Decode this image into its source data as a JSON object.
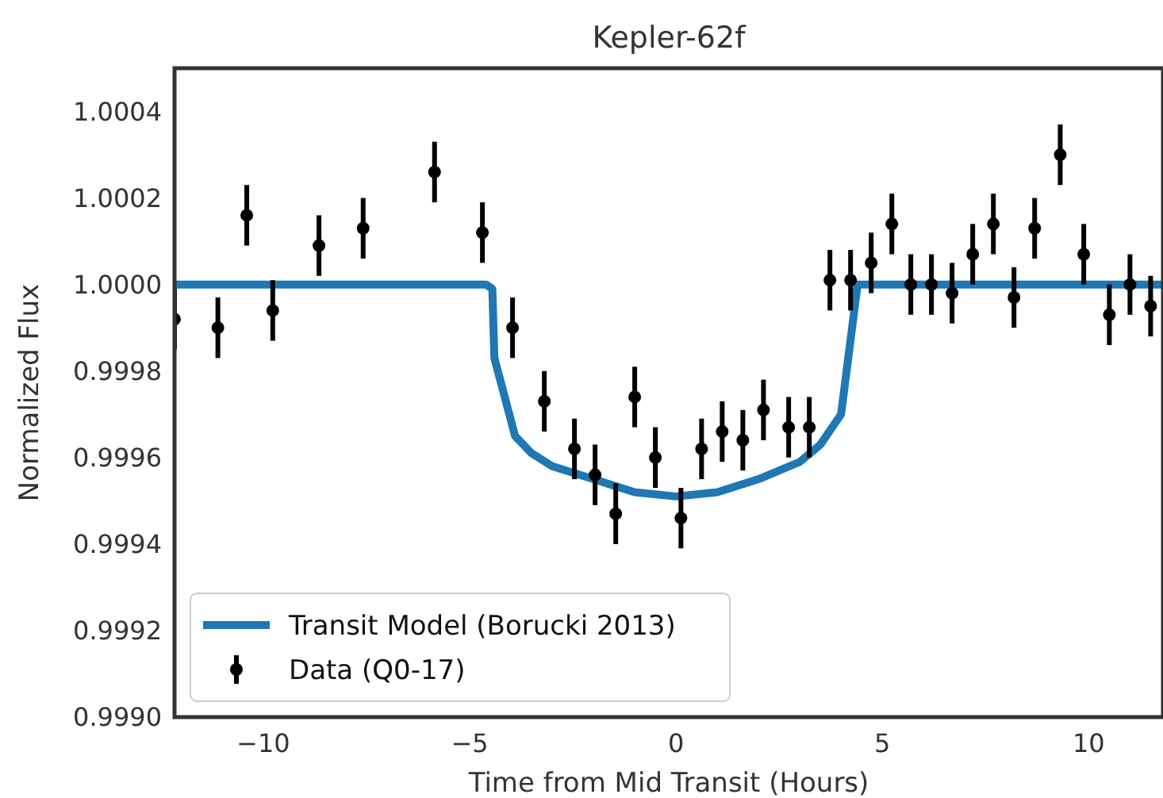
{
  "chart_data": {
    "type": "scatter",
    "title": "Kepler-62f",
    "xlabel": "Time from Mid Transit (Hours)",
    "ylabel": "Normalized Flux",
    "xlim": [
      -12.15,
      11.8
    ],
    "xticks": [
      {
        "value": -10,
        "label": "−10"
      },
      {
        "value": -5,
        "label": "−5"
      },
      0,
      5,
      10
    ],
    "ylim": [
      0.999,
      1.0005
    ],
    "yticks": [
      {
        "value": 0.999,
        "label": "0.9990"
      },
      {
        "value": 0.9992,
        "label": "0.9992"
      },
      {
        "value": 0.9994,
        "label": "0.9994"
      },
      {
        "value": 0.9996,
        "label": "0.9996"
      },
      {
        "value": 0.9998,
        "label": "0.9998"
      },
      {
        "value": 1,
        "label": "1.0000"
      },
      {
        "value": 1.0002,
        "label": "1.0002"
      },
      {
        "value": 1.0004,
        "label": "1.0004"
      }
    ],
    "grid": false,
    "legend": "bottom left",
    "line_style": "solid",
    "series": [
      {
        "name": "Transit Model (Borucki 2013)",
        "type": "line",
        "color": "#1f77b4",
        "x": [
          -12.15,
          -4.6,
          -4.45,
          -4.4,
          -3.9,
          -3.5,
          -3,
          -2,
          -1,
          0,
          1,
          2,
          3,
          3.5,
          4,
          4.4,
          11.8
        ],
        "values": [
          1,
          1,
          0.99999,
          0.99983,
          0.99965,
          0.99961,
          0.99958,
          0.99955,
          0.99952,
          0.99951,
          0.99952,
          0.99955,
          0.99959,
          0.99963,
          0.9997,
          1,
          1
        ]
      },
      {
        "name": "Data (Q0-17)",
        "marker": "circle",
        "color": "#000000",
        "x": [
          -12.15,
          -11.1,
          -10.4,
          -9.77,
          -8.65,
          -7.58,
          -5.85,
          -4.69,
          -3.96,
          -3.19,
          -2.46,
          -1.96,
          -1.46,
          -1,
          -0.5,
          0.12,
          0.62,
          1.12,
          1.62,
          2.12,
          2.73,
          3.23,
          3.73,
          4.23,
          4.73,
          5.23,
          5.69,
          6.19,
          6.69,
          7.19,
          7.69,
          8.19,
          8.69,
          9.31,
          9.88,
          10.5,
          11,
          11.5
        ],
        "values": [
          0.99992,
          0.9999,
          1.00016,
          0.99994,
          1.00009,
          1.00013,
          1.00026,
          1.00012,
          0.9999,
          0.99973,
          0.99962,
          0.99956,
          0.99947,
          0.99974,
          0.9996,
          0.99946,
          0.99962,
          0.99966,
          0.99964,
          0.99971,
          0.99967,
          0.99967,
          1.00001,
          1.00001,
          1.00005,
          1.00014,
          1,
          1,
          0.99998,
          1.00007,
          1.00014,
          0.99997,
          1.00013,
          1.0003,
          1.00007,
          0.99993,
          1,
          0.99995
        ],
        "errors": [
          7e-05,
          7e-05,
          7e-05,
          7e-05,
          7e-05,
          7e-05,
          7e-05,
          7e-05,
          7e-05,
          7e-05,
          7e-05,
          7e-05,
          7e-05,
          7e-05,
          7e-05,
          7e-05,
          7e-05,
          7e-05,
          7e-05,
          7e-05,
          7e-05,
          7e-05,
          7e-05,
          7e-05,
          7e-05,
          7e-05,
          7e-05,
          7e-05,
          7e-05,
          7e-05,
          7e-05,
          7e-05,
          7e-05,
          7e-05,
          7e-05,
          7e-05,
          7e-05,
          7e-05
        ]
      }
    ]
  }
}
